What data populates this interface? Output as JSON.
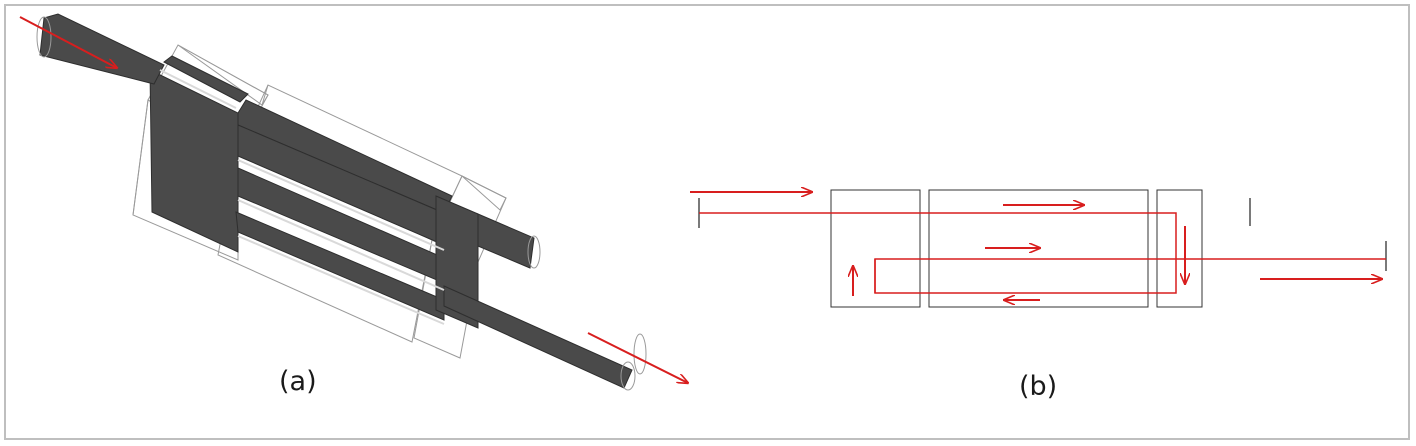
{
  "figure": {
    "panel_a": {
      "caption": "(a)"
    },
    "panel_b": {
      "caption": "(b)"
    }
  },
  "colors": {
    "flow_arrow": "#d81e1e",
    "conductor_fill": "#4a4a4a",
    "outline": "#7a7a7a",
    "frame_border": "#bfbfbf"
  }
}
